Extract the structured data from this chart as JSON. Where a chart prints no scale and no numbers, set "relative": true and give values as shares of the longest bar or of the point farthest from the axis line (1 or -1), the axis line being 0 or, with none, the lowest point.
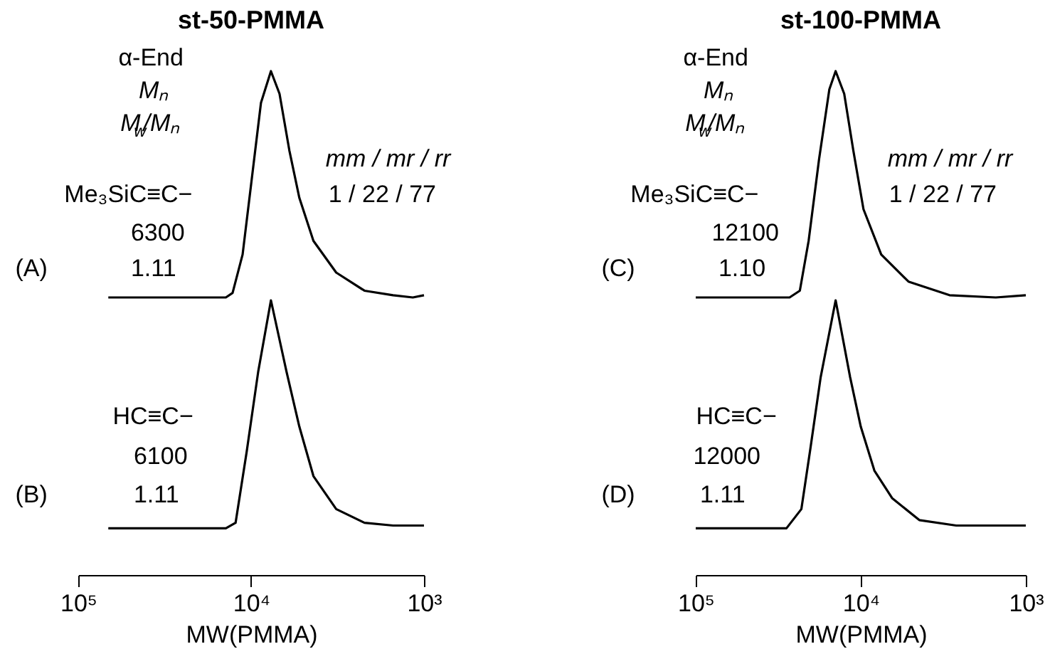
{
  "chart_data": [
    {
      "type": "line",
      "relative": true,
      "title": "st-50-PMMA",
      "log": "x",
      "tick_labels": false,
      "xlim": [
        100000,
        1000
      ],
      "x": [
        67000,
        14000,
        12800,
        11200,
        10000,
        8770,
        7680,
        6850,
        6010,
        5260,
        4360,
        3220,
        2210,
        1510,
        1160,
        1000
      ],
      "series": [
        {
          "color": "#000000",
          "values": [
            0,
            0,
            0.02,
            0.19,
            0.5,
            0.86,
            1,
            0.9,
            0.65,
            0.44,
            0.25,
            0.11,
            0.03,
            0.01,
            0,
            0.01
          ]
        }
      ],
      "annotations": [
        "α-End",
        "Mₙ",
        "M$_{w}$/Mₙ",
        "mm / mr / rr",
        "1  / 22 / 77",
        "Me₃SiC≡C−",
        "6300",
        "1.11",
        "(A)"
      ]
    },
    {
      "type": "line",
      "relative": true,
      "log": "x",
      "tick_labels": "x",
      "xlim": [
        100000,
        1000
      ],
      "xlabel": "MW(PMMA)",
      "xticks": [
        {
          "value": 100000,
          "label": "10⁵"
        },
        {
          "value": 10000,
          "label": "10⁴"
        },
        {
          "value": 1000,
          "label": "10³"
        }
      ],
      "x": [
        67000,
        14000,
        12300,
        10600,
        9100,
        7680,
        6240,
        5260,
        4360,
        3220,
        2210,
        1510,
        1000
      ],
      "series": [
        {
          "color": "#000000",
          "values": [
            0.17,
            0.17,
            0.19,
            0.45,
            0.74,
            1,
            0.74,
            0.54,
            0.36,
            0.24,
            0.19,
            0.18,
            0.18
          ]
        }
      ],
      "annotations": [
        "HC≡C−",
        "6100",
        "1.11",
        "(B)"
      ]
    },
    {
      "type": "line",
      "relative": true,
      "title": "st-100-PMMA",
      "log": "x",
      "tick_labels": false,
      "xlim": [
        100000,
        1000
      ],
      "x": [
        100000,
        27000,
        23400,
        20700,
        17900,
        15500,
        14200,
        12600,
        11100,
        9630,
        7520,
        5140,
        2900,
        1520,
        1000
      ],
      "series": [
        {
          "color": "#000000",
          "values": [
            0,
            0,
            0.03,
            0.25,
            0.61,
            0.92,
            1,
            0.9,
            0.65,
            0.39,
            0.19,
            0.07,
            0.01,
            0,
            0.01
          ]
        }
      ],
      "annotations": [
        "α-End",
        "Mₙ",
        "M$_{w}$/Mₙ",
        "mm / mr / rr",
        "1  / 22 / 77",
        "Me₃SiC≡C−",
        "12100",
        "1.10",
        "(C)"
      ]
    },
    {
      "type": "line",
      "relative": true,
      "log": "x",
      "tick_labels": "x",
      "xlim": [
        100000,
        1000
      ],
      "xlabel": "MW(PMMA)",
      "xticks": [
        {
          "value": 100000,
          "label": "10⁵"
        },
        {
          "value": 10000,
          "label": "10⁴"
        },
        {
          "value": 1000,
          "label": "10³"
        }
      ],
      "x": [
        100000,
        28200,
        22900,
        20200,
        17500,
        14200,
        11600,
        10000,
        8270,
        6460,
        4420,
        2640,
        1000
      ],
      "series": [
        {
          "color": "#000000",
          "values": [
            0.17,
            0.17,
            0.24,
            0.46,
            0.72,
            1,
            0.72,
            0.54,
            0.38,
            0.28,
            0.2,
            0.18,
            0.18
          ]
        }
      ],
      "annotations": [
        "HC≡C−",
        "12000",
        "1.11",
        "(D)"
      ]
    }
  ]
}
